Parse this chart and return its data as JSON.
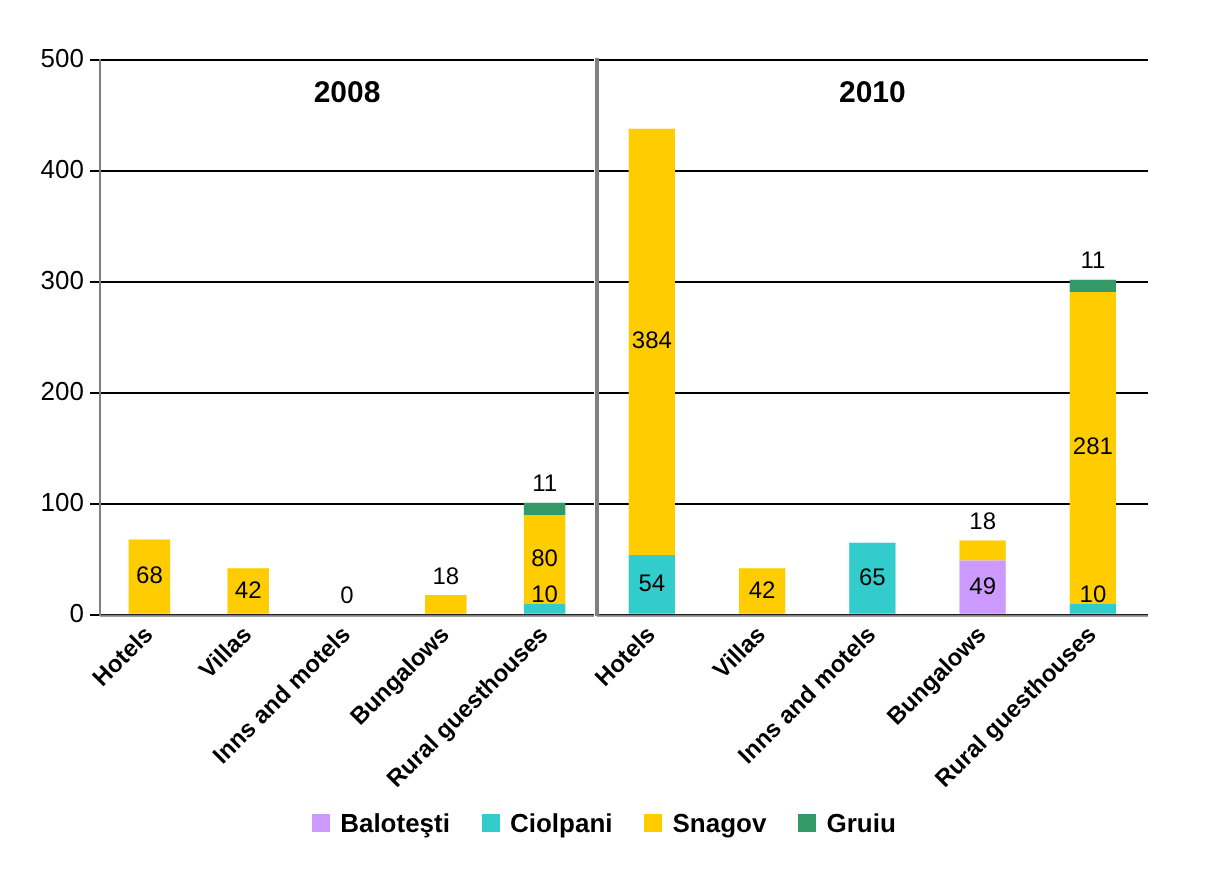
{
  "chart_data": [
    {
      "type": "bar",
      "stacked": true,
      "title": "2008",
      "categories": [
        "Hotels",
        "Villas",
        "Inns and motels",
        "Bungalows",
        "Rural guesthouses"
      ],
      "series": [
        {
          "name": "Baloteşti",
          "color": "#cc99ff",
          "values": [
            null,
            null,
            null,
            null,
            null
          ]
        },
        {
          "name": "Ciolpani",
          "color": "#33cccc",
          "values": [
            null,
            null,
            0,
            null,
            10
          ]
        },
        {
          "name": "Snagov",
          "color": "#ffcc00",
          "values": [
            68,
            42,
            null,
            18,
            80
          ]
        },
        {
          "name": "Gruiu",
          "color": "#339966",
          "values": [
            null,
            null,
            null,
            null,
            11
          ]
        }
      ],
      "ylim": [
        0,
        500
      ],
      "yticks": [
        0,
        100,
        200,
        300,
        400,
        500
      ],
      "grid": "y",
      "legend": "bottom",
      "data_labels": true
    },
    {
      "type": "bar",
      "stacked": true,
      "title": "2010",
      "categories": [
        "Hotels",
        "Villas",
        "Inns and motels",
        "Bungalows",
        "Rural guesthouses"
      ],
      "series": [
        {
          "color": "#cc99ff",
          "values": [
            null,
            null,
            null,
            49,
            null
          ]
        },
        {
          "color": "#33cccc",
          "values": [
            54,
            null,
            65,
            null,
            10
          ]
        },
        {
          "color": "#ffcc00",
          "values": [
            384,
            42,
            null,
            18,
            281
          ]
        },
        {
          "color": "#339966",
          "values": [
            null,
            null,
            null,
            null,
            11
          ]
        }
      ],
      "ylim": [
        0,
        500
      ],
      "yticks": [
        0,
        100,
        200,
        300,
        400,
        500
      ],
      "grid": "y",
      "data_labels": true,
      "tick_labels": "x"
    }
  ]
}
